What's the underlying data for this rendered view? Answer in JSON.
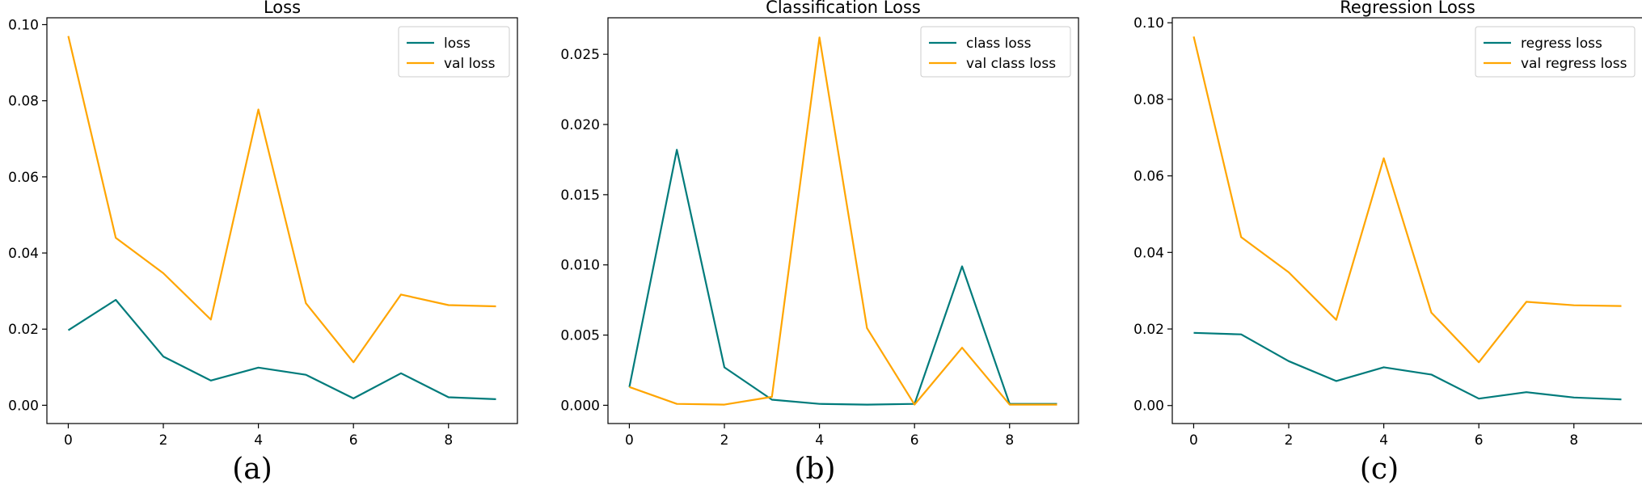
{
  "figure": {
    "captions": [
      "(a)",
      "(b)",
      "(c)"
    ]
  },
  "colors": {
    "train": "#007b7b",
    "val": "#ffa500"
  },
  "chart_data": [
    {
      "type": "line",
      "title": "Loss",
      "x": [
        0,
        1,
        2,
        3,
        4,
        5,
        6,
        7,
        8,
        9
      ],
      "xlim": [
        -0.45,
        9.45
      ],
      "ylim": [
        -0.0048,
        0.1018
      ],
      "xticks": [
        "0",
        "2",
        "4",
        "6",
        "8"
      ],
      "yticks": [
        "0.00",
        "0.02",
        "0.04",
        "0.06",
        "0.08",
        "0.10"
      ],
      "legend_position": "top-right",
      "series": [
        {
          "name": "loss",
          "color": "#007b7b",
          "values": [
            0.0197,
            0.0277,
            0.0128,
            0.0065,
            0.0099,
            0.008,
            0.0018,
            0.0084,
            0.0021,
            0.0016
          ]
        },
        {
          "name": "val loss",
          "color": "#ffa500",
          "values": [
            0.097,
            0.044,
            0.0347,
            0.0225,
            0.0777,
            0.0268,
            0.0113,
            0.0291,
            0.0263,
            0.026
          ]
        }
      ]
    },
    {
      "type": "line",
      "title": "Classification Loss",
      "x": [
        0,
        1,
        2,
        3,
        4,
        5,
        6,
        7,
        8,
        9
      ],
      "xlim": [
        -0.45,
        9.45
      ],
      "ylim": [
        -0.0013,
        0.0276
      ],
      "xticks": [
        "0",
        "2",
        "4",
        "6",
        "8"
      ],
      "yticks": [
        "0.000",
        "0.005",
        "0.010",
        "0.015",
        "0.020",
        "0.025"
      ],
      "legend_position": "top-right",
      "series": [
        {
          "name": "class loss",
          "color": "#007b7b",
          "values": [
            0.0013,
            0.0182,
            0.0027,
            0.0004,
            0.0001,
            5e-05,
            0.0001,
            0.0099,
            0.0001,
            0.0001
          ]
        },
        {
          "name": "val class loss",
          "color": "#ffa500",
          "values": [
            0.0013,
            0.0001,
            5e-05,
            0.0006,
            0.0262,
            0.0055,
            5e-05,
            0.0041,
            5e-05,
            5e-05
          ]
        }
      ]
    },
    {
      "type": "line",
      "title": "Regression Loss",
      "x": [
        0,
        1,
        2,
        3,
        4,
        5,
        6,
        7,
        8,
        9
      ],
      "xlim": [
        -0.45,
        9.45
      ],
      "ylim": [
        -0.0047,
        0.1013
      ],
      "xticks": [
        "0",
        "2",
        "4",
        "6",
        "8"
      ],
      "yticks": [
        "0.00",
        "0.02",
        "0.04",
        "0.06",
        "0.08",
        "0.10"
      ],
      "legend_position": "top-right",
      "series": [
        {
          "name": "regress loss",
          "color": "#007b7b",
          "values": [
            0.019,
            0.0186,
            0.0116,
            0.0064,
            0.01,
            0.0081,
            0.0018,
            0.0035,
            0.0021,
            0.0016
          ]
        },
        {
          "name": "val regress loss",
          "color": "#ffa500",
          "values": [
            0.0964,
            0.044,
            0.0348,
            0.0224,
            0.0646,
            0.0243,
            0.0113,
            0.0271,
            0.0262,
            0.026
          ]
        }
      ]
    }
  ]
}
